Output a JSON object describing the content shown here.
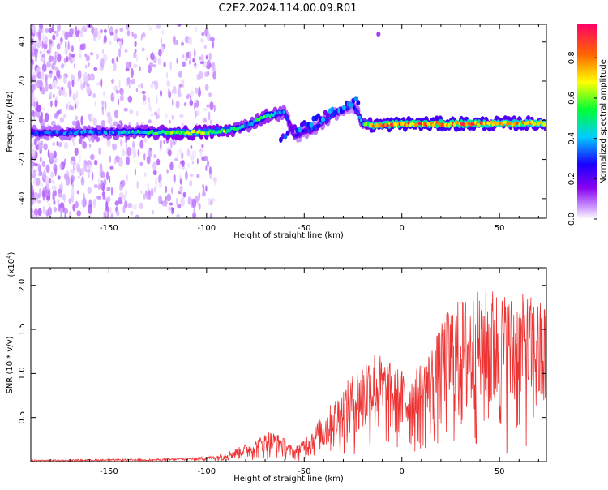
{
  "title": "C2E2.2024.114.00.09.R01",
  "chart_data": [
    {
      "type": "heatmap",
      "xlabel": "Height of straight line (km)",
      "ylabel": "Frequency (Hz)",
      "xlim": [
        -190,
        74
      ],
      "ylim": [
        -50,
        49
      ],
      "xticks": [
        -150,
        -100,
        -50,
        0,
        50
      ],
      "yticks": [
        -40,
        -20,
        0,
        20,
        40
      ],
      "colorbar": {
        "label": "Normalized spectral amplitude",
        "range": [
          0,
          0.97
        ],
        "ticks": [
          0.0,
          0.2,
          0.4,
          0.6,
          0.8
        ],
        "colors": [
          "#ffffff",
          "#cc99ff",
          "#8800ee",
          "#1a00ff",
          "#00ccff",
          "#00ff33",
          "#ffff00",
          "#ff6600",
          "#ff0066"
        ]
      },
      "ridge": [
        {
          "x": -190,
          "y": -6.5,
          "amp": 0.45
        },
        {
          "x": -150,
          "y": -6.0,
          "amp": 0.5
        },
        {
          "x": -110,
          "y": -6.5,
          "amp": 0.75
        },
        {
          "x": -90,
          "y": -5.5,
          "amp": 0.7
        },
        {
          "x": -80,
          "y": -3.0,
          "amp": 0.55
        },
        {
          "x": -70,
          "y": 2.0,
          "amp": 0.65
        },
        {
          "x": -60,
          "y": 4.0,
          "amp": 0.5
        },
        {
          "x": -55,
          "y": -8.0,
          "amp": 0.35
        },
        {
          "x": -45,
          "y": -4.0,
          "amp": 0.45
        },
        {
          "x": -35,
          "y": 3.0,
          "amp": 0.45
        },
        {
          "x": -25,
          "y": 8.0,
          "amp": 0.35
        },
        {
          "x": -20,
          "y": -1.5,
          "amp": 0.6
        },
        {
          "x": -15,
          "y": -2.5,
          "amp": 0.9
        },
        {
          "x": 0,
          "y": -1.8,
          "amp": 0.95
        },
        {
          "x": 30,
          "y": -1.8,
          "amp": 0.93
        },
        {
          "x": 74,
          "y": -1.5,
          "amp": 0.85
        }
      ]
    },
    {
      "type": "line",
      "xlabel": "Height of straight line (km)",
      "ylabel": "SNR (10 * v/v)",
      "y_multiplier": "x10^4",
      "xlim": [
        -190,
        74
      ],
      "ylim": [
        0,
        2.2
      ],
      "xticks": [
        -150,
        -100,
        -50,
        0,
        50
      ],
      "yticks": [
        0.5,
        1.0,
        1.5,
        2.0
      ],
      "color": "#ee3333",
      "envelope": [
        {
          "x": -190,
          "y": 0.02
        },
        {
          "x": -130,
          "y": 0.03
        },
        {
          "x": -110,
          "y": 0.04
        },
        {
          "x": -95,
          "y": 0.07
        },
        {
          "x": -85,
          "y": 0.15
        },
        {
          "x": -75,
          "y": 0.25
        },
        {
          "x": -68,
          "y": 0.35
        },
        {
          "x": -62,
          "y": 0.3
        },
        {
          "x": -55,
          "y": 0.15
        },
        {
          "x": -45,
          "y": 0.4
        },
        {
          "x": -35,
          "y": 0.7
        },
        {
          "x": -25,
          "y": 1.0
        },
        {
          "x": -15,
          "y": 1.3
        },
        {
          "x": -5,
          "y": 1.1
        },
        {
          "x": 5,
          "y": 1.0
        },
        {
          "x": 15,
          "y": 1.3
        },
        {
          "x": 25,
          "y": 1.8
        },
        {
          "x": 35,
          "y": 1.9
        },
        {
          "x": 45,
          "y": 2.0
        },
        {
          "x": 55,
          "y": 1.9
        },
        {
          "x": 65,
          "y": 1.9
        },
        {
          "x": 74,
          "y": 1.8
        }
      ]
    }
  ]
}
